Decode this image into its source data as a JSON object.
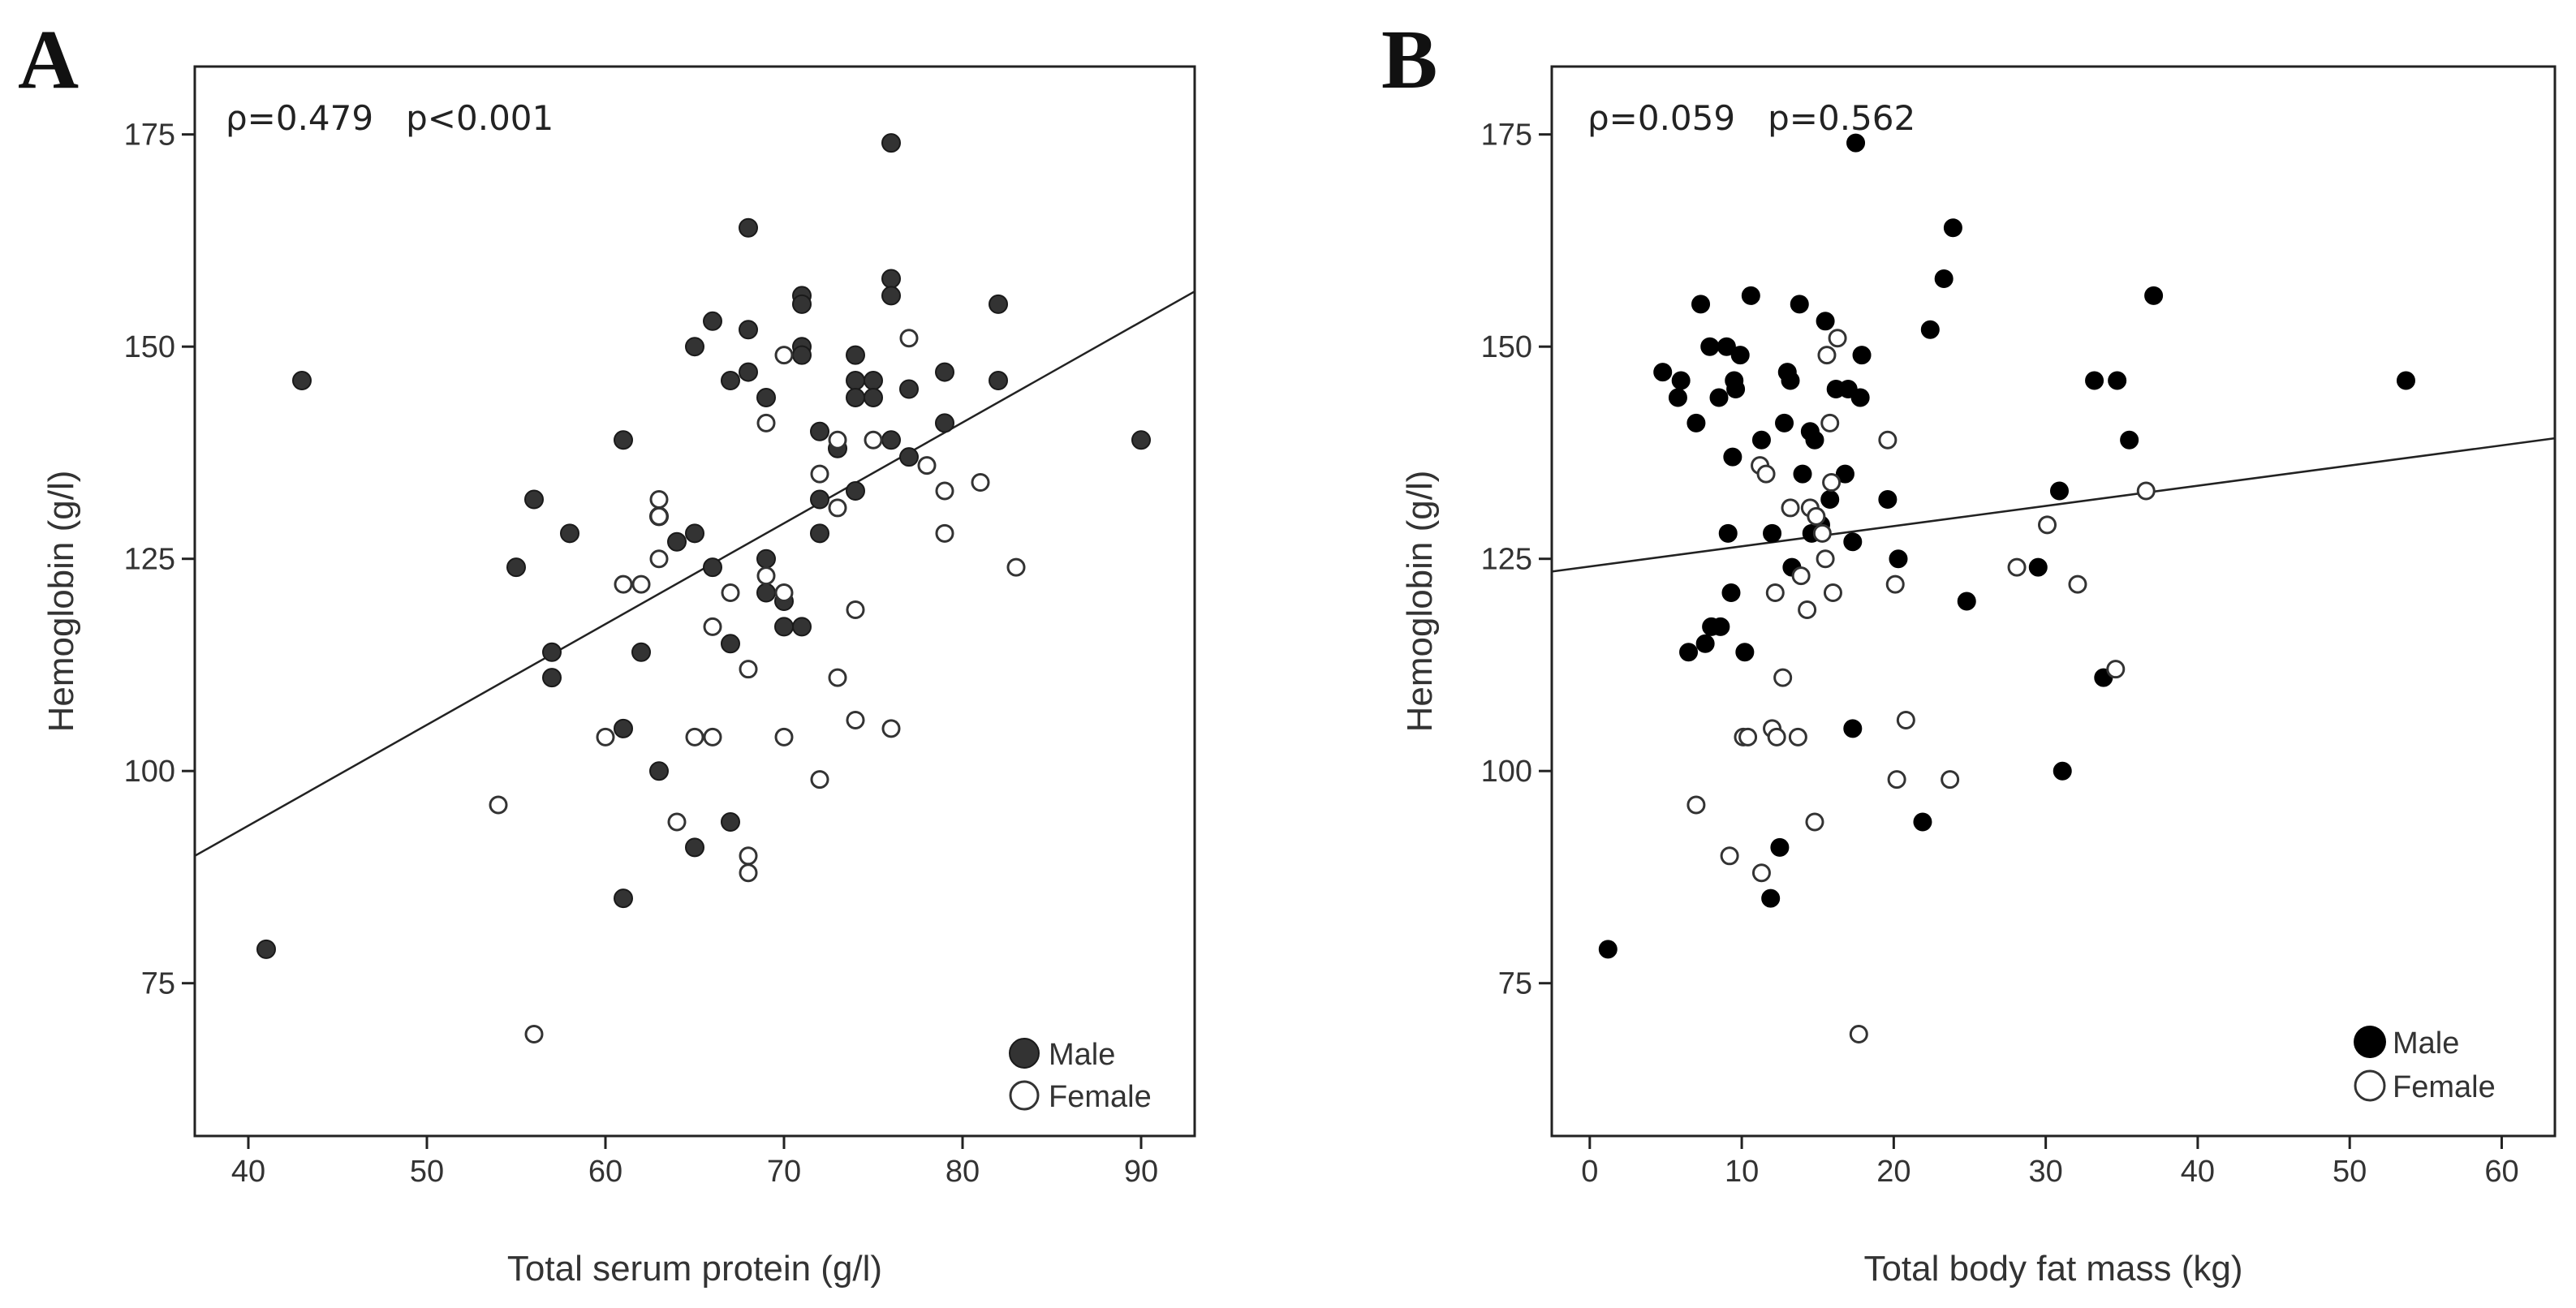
{
  "chart_data": [
    {
      "type": "scatter",
      "panel_label": "A",
      "stats_text": "ρ=0.479   p<0.001",
      "title": "",
      "xlabel": "Total serum protein (g/l)",
      "ylabel": "Hemoglobin (g/l)",
      "xlim": [
        37,
        93
      ],
      "ylim": [
        57,
        183
      ],
      "xticks": [
        40,
        50,
        60,
        70,
        80,
        90
      ],
      "yticks": [
        75,
        100,
        125,
        150,
        175
      ],
      "legend": {
        "position": "bottom-right",
        "entries": [
          {
            "label": "Male",
            "style": "filled"
          },
          {
            "label": "Female",
            "style": "open"
          }
        ]
      },
      "fit_line": {
        "x": [
          37,
          93
        ],
        "y": [
          90,
          156.5
        ]
      },
      "series": [
        {
          "name": "Male",
          "points": [
            [
              41,
              79
            ],
            [
              43,
              146
            ],
            [
              55,
              124
            ],
            [
              56,
              132
            ],
            [
              57,
              114
            ],
            [
              57,
              111
            ],
            [
              58,
              128
            ],
            [
              61,
              139
            ],
            [
              61,
              105
            ],
            [
              61,
              85
            ],
            [
              62,
              114
            ],
            [
              63,
              130
            ],
            [
              63,
              100
            ],
            [
              64,
              127
            ],
            [
              65,
              150
            ],
            [
              65,
              128
            ],
            [
              65,
              91
            ],
            [
              66,
              153
            ],
            [
              66,
              124
            ],
            [
              67,
              146
            ],
            [
              67,
              115
            ],
            [
              67,
              94
            ],
            [
              68,
              164
            ],
            [
              68,
              152
            ],
            [
              68,
              147
            ],
            [
              69,
              144
            ],
            [
              69,
              125
            ],
            [
              69,
              121
            ],
            [
              70,
              120
            ],
            [
              70,
              117
            ],
            [
              71,
              156
            ],
            [
              71,
              155
            ],
            [
              71,
              150
            ],
            [
              71,
              149
            ],
            [
              71,
              117
            ],
            [
              72,
              140
            ],
            [
              72,
              132
            ],
            [
              72,
              128
            ],
            [
              73,
              138
            ],
            [
              74,
              149
            ],
            [
              74,
              146
            ],
            [
              74,
              144
            ],
            [
              74,
              133
            ],
            [
              75,
              146
            ],
            [
              75,
              144
            ],
            [
              76,
              174
            ],
            [
              76,
              158
            ],
            [
              76,
              156
            ],
            [
              76,
              139
            ],
            [
              77,
              145
            ],
            [
              77,
              137
            ],
            [
              79,
              147
            ],
            [
              79,
              141
            ],
            [
              82,
              155
            ],
            [
              82,
              146
            ],
            [
              90,
              139
            ]
          ]
        },
        {
          "name": "Female",
          "points": [
            [
              54,
              96
            ],
            [
              56,
              69
            ],
            [
              60,
              104
            ],
            [
              61,
              122
            ],
            [
              62,
              122
            ],
            [
              63,
              132
            ],
            [
              63,
              130
            ],
            [
              63,
              125
            ],
            [
              64,
              94
            ],
            [
              65,
              104
            ],
            [
              66,
              117
            ],
            [
              66,
              104
            ],
            [
              67,
              121
            ],
            [
              68,
              112
            ],
            [
              68,
              90
            ],
            [
              68,
              88
            ],
            [
              69,
              141
            ],
            [
              69,
              123
            ],
            [
              70,
              149
            ],
            [
              70,
              121
            ],
            [
              70,
              104
            ],
            [
              72,
              135
            ],
            [
              72,
              99
            ],
            [
              73,
              139
            ],
            [
              73,
              131
            ],
            [
              73,
              111
            ],
            [
              74,
              119
            ],
            [
              74,
              106
            ],
            [
              75,
              139
            ],
            [
              76,
              105
            ],
            [
              77,
              151
            ],
            [
              78,
              136
            ],
            [
              79,
              133
            ],
            [
              79,
              128
            ],
            [
              81,
              134
            ],
            [
              83,
              124
            ]
          ]
        }
      ]
    },
    {
      "type": "scatter",
      "panel_label": "B",
      "stats_text": "ρ=0.059   p=0.562",
      "title": "",
      "xlabel": "Total body fat mass (kg)",
      "ylabel": "Hemoglobin (g/l)",
      "xlim": [
        -2.5,
        63.5
      ],
      "ylim": [
        57,
        183
      ],
      "xticks": [
        0,
        10,
        20,
        30,
        40,
        50,
        60
      ],
      "yticks": [
        75,
        100,
        125,
        150,
        175
      ],
      "legend": {
        "position": "bottom-right",
        "entries": [
          {
            "label": "Male",
            "style": "filled"
          },
          {
            "label": "Female",
            "style": "open"
          }
        ]
      },
      "fit_line": {
        "x": [
          -2.5,
          63.5
        ],
        "y": [
          123.5,
          139.2
        ]
      },
      "series": [
        {
          "name": "Male",
          "points": [
            [
              1.2,
              79
            ],
            [
              4.8,
              147
            ],
            [
              5.8,
              144
            ],
            [
              6,
              146
            ],
            [
              6.5,
              114
            ],
            [
              7,
              141
            ],
            [
              7.3,
              155
            ],
            [
              7.6,
              115
            ],
            [
              7.9,
              150
            ],
            [
              8,
              117
            ],
            [
              8.5,
              144
            ],
            [
              8.6,
              117
            ],
            [
              9,
              150
            ],
            [
              9.1,
              128
            ],
            [
              9.3,
              121
            ],
            [
              9.4,
              137
            ],
            [
              9.5,
              146
            ],
            [
              9.6,
              145
            ],
            [
              9.9,
              149
            ],
            [
              10.2,
              114
            ],
            [
              10.6,
              156
            ],
            [
              11.3,
              139
            ],
            [
              11.9,
              85
            ],
            [
              12,
              128
            ],
            [
              12.5,
              91
            ],
            [
              12.8,
              141
            ],
            [
              13,
              147
            ],
            [
              13.2,
              146
            ],
            [
              13.3,
              124
            ],
            [
              13.8,
              155
            ],
            [
              14,
              135
            ],
            [
              14.5,
              140
            ],
            [
              14.6,
              128
            ],
            [
              14.8,
              139
            ],
            [
              15.2,
              129
            ],
            [
              15.5,
              153
            ],
            [
              15.8,
              132
            ],
            [
              16.2,
              145
            ],
            [
              16.8,
              135
            ],
            [
              17,
              145
            ],
            [
              17.3,
              105
            ],
            [
              17.3,
              127
            ],
            [
              17.5,
              174
            ],
            [
              17.8,
              144
            ],
            [
              17.9,
              149
            ],
            [
              19.6,
              132
            ],
            [
              20.3,
              125
            ],
            [
              21.9,
              94
            ],
            [
              22.4,
              152
            ],
            [
              23.3,
              158
            ],
            [
              23.9,
              164
            ],
            [
              24.8,
              120
            ],
            [
              29.5,
              124
            ],
            [
              30.9,
              133
            ],
            [
              31.1,
              100
            ],
            [
              33.2,
              146
            ],
            [
              33.8,
              111
            ],
            [
              34.7,
              146
            ],
            [
              35.5,
              139
            ],
            [
              37.1,
              156
            ],
            [
              53.7,
              146
            ]
          ]
        },
        {
          "name": "Female",
          "points": [
            [
              7,
              96
            ],
            [
              9.2,
              90
            ],
            [
              10.1,
              104
            ],
            [
              10.4,
              104
            ],
            [
              11.2,
              136
            ],
            [
              11.3,
              88
            ],
            [
              11.6,
              135
            ],
            [
              12,
              105
            ],
            [
              12.2,
              121
            ],
            [
              12.3,
              104
            ],
            [
              12.7,
              111
            ],
            [
              13.2,
              131
            ],
            [
              13.7,
              104
            ],
            [
              13.9,
              123
            ],
            [
              14.3,
              119
            ],
            [
              14.5,
              131
            ],
            [
              14.8,
              94
            ],
            [
              14.9,
              130
            ],
            [
              15.3,
              128
            ],
            [
              15.5,
              125
            ],
            [
              15.6,
              149
            ],
            [
              15.8,
              141
            ],
            [
              15.9,
              134
            ],
            [
              16,
              121
            ],
            [
              16.3,
              151
            ],
            [
              17.7,
              69
            ],
            [
              19.6,
              139
            ],
            [
              20.1,
              122
            ],
            [
              20.2,
              99
            ],
            [
              20.8,
              106
            ],
            [
              23.7,
              99
            ],
            [
              28.1,
              124
            ],
            [
              30.1,
              129
            ],
            [
              32.1,
              122
            ],
            [
              34.6,
              112
            ],
            [
              36.6,
              133
            ]
          ]
        }
      ]
    }
  ]
}
